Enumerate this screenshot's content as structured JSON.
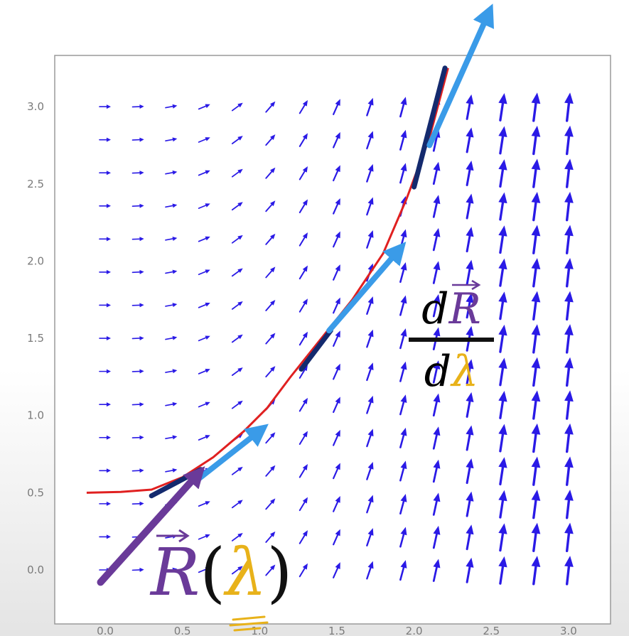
{
  "chart_data": {
    "type": "vector_field",
    "x_range": [
      0,
      3
    ],
    "y_range": [
      0,
      3
    ],
    "x_ticks": [
      "0.0",
      "0.5",
      "1.0",
      "1.5",
      "2.0",
      "2.5",
      "3.0"
    ],
    "y_ticks": [
      "0.0",
      "0.5",
      "1.0",
      "1.5",
      "2.0",
      "2.5",
      "3.0"
    ],
    "curve": [
      [
        -0.12,
        0.5
      ],
      [
        0.1,
        0.505
      ],
      [
        0.3,
        0.52
      ],
      [
        0.5,
        0.6
      ],
      [
        0.7,
        0.73
      ],
      [
        0.9,
        0.9
      ],
      [
        1.05,
        1.05
      ],
      [
        1.2,
        1.25
      ],
      [
        1.4,
        1.5
      ],
      [
        1.6,
        1.75
      ],
      [
        1.8,
        2.05
      ],
      [
        1.95,
        2.4
      ],
      [
        2.1,
        2.8
      ],
      [
        2.22,
        3.25
      ]
    ],
    "tangent_arrows": [
      [
        0.58,
        0.57,
        1.0,
        0.9
      ],
      [
        1.45,
        1.55,
        1.9,
        2.07
      ],
      [
        2.1,
        2.75,
        2.48,
        3.6
      ]
    ],
    "position_vector": [
      [
        -0.03,
        -0.08
      ],
      [
        0.6,
        0.62
      ]
    ],
    "colors": {
      "field_arrow": "#2a1ae6",
      "curve": "#e02020",
      "tangent": "#3a9be8",
      "tangent_shadow": "#142a6e",
      "position_vector": "#6a3a99",
      "lambda": "#e8b21a"
    }
  },
  "labels": {
    "derivative": {
      "d_top": "d",
      "r_top": "R",
      "d_bottom": "d",
      "lambda": "λ"
    },
    "position": {
      "r": "R",
      "open": "(",
      "lambda": "λ",
      "close": ")"
    }
  }
}
